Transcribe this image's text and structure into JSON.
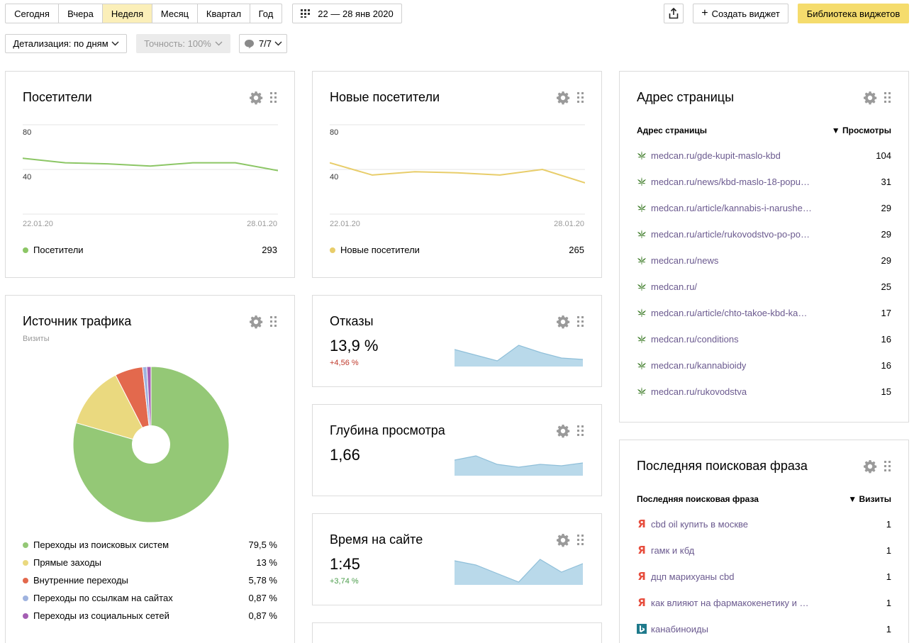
{
  "toolbar": {
    "periods": [
      "Сегодня",
      "Вчера",
      "Неделя",
      "Месяц",
      "Квартал",
      "Год"
    ],
    "active_period": "Неделя",
    "date_range": "22 — 28 янв 2020",
    "create_widget": "Создать виджет",
    "widget_library": "Библиотека виджетов",
    "detail": "Детализация: по дням",
    "accuracy": "Точность: 100%",
    "annotations": "7/7"
  },
  "visitors": {
    "title": "Посетители",
    "y_top": "80",
    "y_mid": "40",
    "date_start": "22.01.20",
    "date_end": "28.01.20",
    "legend": "Посетители",
    "total": "293",
    "color": "#8cc665"
  },
  "new_visitors": {
    "title": "Новые посетители",
    "y_top": "80",
    "y_mid": "40",
    "date_start": "22.01.20",
    "date_end": "28.01.20",
    "legend": "Новые посетители",
    "total": "265",
    "color": "#e8cd6a"
  },
  "traffic": {
    "title": "Источник трафика",
    "subtitle": "Визиты",
    "items": [
      {
        "label": "Переходы из поисковых систем",
        "value": "79,5 %",
        "color": "#94c876"
      },
      {
        "label": "Прямые заходы",
        "value": "13 %",
        "color": "#ead97f"
      },
      {
        "label": "Внутренние переходы",
        "value": "5,78 %",
        "color": "#e3694d"
      },
      {
        "label": "Переходы по ссылкам на сайтах",
        "value": "0,87 %",
        "color": "#9fb3df"
      },
      {
        "label": "Переходы из социальных сетей",
        "value": "0,87 %",
        "color": "#a45eb3"
      }
    ]
  },
  "bounce": {
    "title": "Отказы",
    "value": "13,9 %",
    "delta": "+4,56 %",
    "delta_color": "#c0392b"
  },
  "depth": {
    "title": "Глубина просмотра",
    "value": "1,66"
  },
  "time": {
    "title": "Время на сайте",
    "value": "1:45",
    "delta": "+3,74 %",
    "delta_color": "#4a9c4a"
  },
  "pages": {
    "title": "Адрес страницы",
    "col1": "Адрес страницы",
    "col2": "▼ Просмотры",
    "rows": [
      {
        "url": "medcan.ru/gde-kupit-maslo-kbd",
        "views": "104"
      },
      {
        "url": "medcan.ru/news/kbd-maslo-18-popu…",
        "views": "31"
      },
      {
        "url": "medcan.ru/article/kannabis-i-narushe…",
        "views": "29"
      },
      {
        "url": "medcan.ru/article/rukovodstvo-po-po…",
        "views": "29"
      },
      {
        "url": "medcan.ru/news",
        "views": "29"
      },
      {
        "url": "medcan.ru/",
        "views": "25"
      },
      {
        "url": "medcan.ru/article/chto-takoe-kbd-ka…",
        "views": "17"
      },
      {
        "url": "medcan.ru/conditions",
        "views": "16"
      },
      {
        "url": "medcan.ru/kannabioidy",
        "views": "16"
      },
      {
        "url": "medcan.ru/rukovodstva",
        "views": "15"
      }
    ]
  },
  "search": {
    "title": "Последняя поисковая фраза",
    "col1": "Последняя поисковая фраза",
    "col2": "▼ Визиты",
    "rows": [
      {
        "phrase": "cbd oil купить в москве",
        "visits": "1",
        "engine": "yandex"
      },
      {
        "phrase": "гамк и кбд",
        "visits": "1",
        "engine": "yandex"
      },
      {
        "phrase": "дцп марихуаны cbd",
        "visits": "1",
        "engine": "yandex"
      },
      {
        "phrase": "как влияют на фармакокенетику и ф…",
        "visits": "1",
        "engine": "yandex"
      },
      {
        "phrase": "канабиноиды",
        "visits": "1",
        "engine": "bing"
      }
    ]
  },
  "chart_data": [
    {
      "type": "line",
      "series": [
        {
          "name": "Посетители",
          "values": [
            50,
            46,
            45,
            43,
            46,
            46,
            39
          ]
        }
      ],
      "x": [
        "22.01.20",
        "23.01.20",
        "24.01.20",
        "25.01.20",
        "26.01.20",
        "27.01.20",
        "28.01.20"
      ],
      "ylim": [
        0,
        80
      ]
    },
    {
      "type": "line",
      "series": [
        {
          "name": "Новые посетители",
          "values": [
            46,
            35,
            38,
            37,
            35,
            40,
            28
          ]
        }
      ],
      "x": [
        "22.01.20",
        "23.01.20",
        "24.01.20",
        "25.01.20",
        "26.01.20",
        "27.01.20",
        "28.01.20"
      ],
      "ylim": [
        0,
        80
      ]
    },
    {
      "type": "pie",
      "categories": [
        "Переходы из поисковых систем",
        "Прямые заходы",
        "Внутренние переходы",
        "Переходы по ссылкам на сайтах",
        "Переходы из социальных сетей"
      ],
      "values": [
        79.5,
        13,
        5.78,
        0.87,
        0.87
      ]
    },
    {
      "type": "area",
      "series": [
        {
          "name": "Отказы",
          "values": [
            12,
            8,
            4,
            15,
            10,
            6,
            5
          ]
        }
      ]
    },
    {
      "type": "area",
      "series": [
        {
          "name": "Глубина просмотра",
          "values": [
            11,
            14,
            8,
            6,
            8,
            7,
            9
          ]
        }
      ]
    },
    {
      "type": "area",
      "series": [
        {
          "name": "Время на сайте",
          "values": [
            17,
            14,
            8,
            2,
            18,
            9,
            15
          ]
        }
      ]
    }
  ]
}
